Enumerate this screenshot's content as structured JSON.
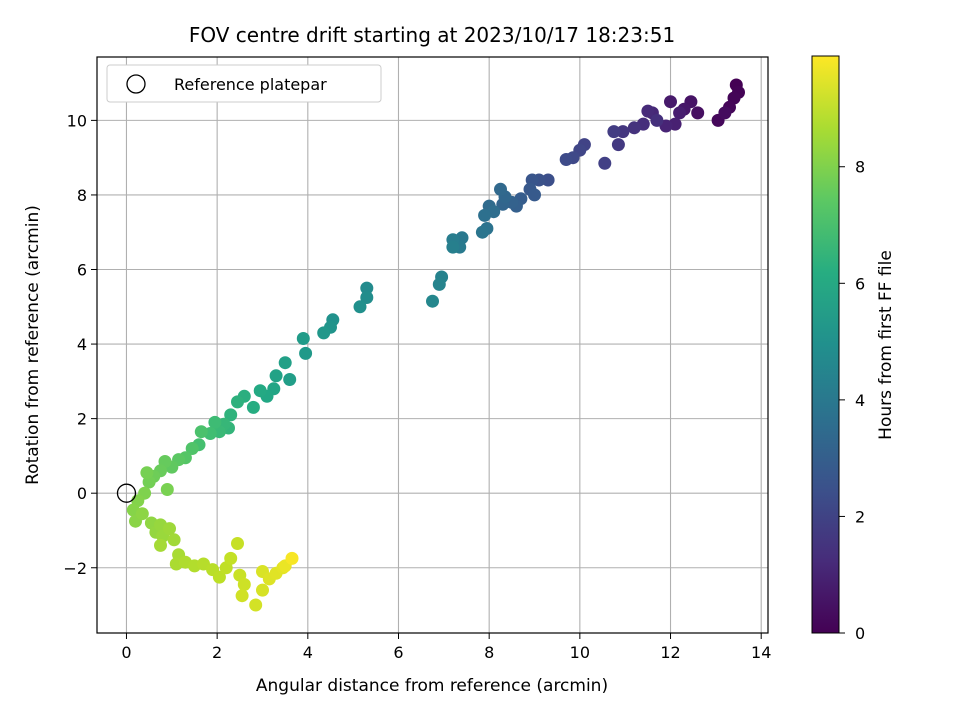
{
  "chart_data": {
    "type": "scatter",
    "title": "FOV centre drift starting at 2023/10/17 18:23:51",
    "xlabel": "Angular distance from reference (arcmin)",
    "ylabel": "Rotation from reference (arcmin)",
    "xlim": [
      -0.65,
      14.15
    ],
    "ylim": [
      -3.75,
      11.7
    ],
    "xticks": [
      0,
      2,
      4,
      6,
      8,
      10,
      12,
      14
    ],
    "yticks": [
      -2,
      0,
      2,
      4,
      6,
      8,
      10
    ],
    "xtick_labels": [
      "0",
      "2",
      "4",
      "6",
      "8",
      "10",
      "12",
      "14"
    ],
    "ytick_labels": [
      "−2",
      "0",
      "2",
      "4",
      "6",
      "8",
      "10"
    ],
    "grid": true,
    "legend": {
      "placement": "top-left",
      "label": "Reference platepar",
      "marker": "open circle"
    },
    "reference_point": {
      "x": 0,
      "y": 0
    },
    "colorbar": {
      "label": "Hours from first FF file",
      "colormap": "viridis",
      "range": [
        0,
        9.9
      ],
      "ticks": [
        0,
        2,
        4,
        6,
        8
      ],
      "tick_labels": [
        "0",
        "2",
        "4",
        "6",
        "8"
      ]
    },
    "series": [
      {
        "points": [
          [
            13.45,
            10.95,
            0.0
          ],
          [
            13.5,
            10.75,
            0.05
          ],
          [
            13.4,
            10.6,
            0.1
          ],
          [
            13.3,
            10.35,
            0.15
          ],
          [
            13.05,
            10.0,
            0.2
          ],
          [
            13.2,
            10.2,
            0.3
          ],
          [
            12.6,
            10.2,
            0.4
          ],
          [
            12.45,
            10.5,
            0.5
          ],
          [
            12.3,
            10.3,
            0.6
          ],
          [
            12.0,
            10.5,
            0.7
          ],
          [
            12.2,
            10.2,
            0.8
          ],
          [
            12.1,
            9.9,
            0.9
          ],
          [
            11.9,
            9.85,
            1.0
          ],
          [
            11.6,
            10.2,
            1.1
          ],
          [
            11.5,
            10.25,
            1.2
          ],
          [
            11.4,
            9.9,
            1.3
          ],
          [
            11.7,
            10.0,
            1.35
          ],
          [
            11.2,
            9.8,
            1.45
          ],
          [
            10.95,
            9.7,
            1.55
          ],
          [
            10.85,
            9.35,
            1.65
          ],
          [
            10.75,
            9.7,
            1.75
          ],
          [
            10.55,
            8.85,
            1.85
          ],
          [
            10.1,
            9.35,
            1.95
          ],
          [
            10.0,
            9.2,
            2.05
          ],
          [
            9.85,
            9.0,
            2.15
          ],
          [
            9.7,
            8.95,
            2.25
          ],
          [
            9.3,
            8.4,
            2.4
          ],
          [
            9.1,
            8.4,
            2.5
          ],
          [
            8.95,
            8.4,
            2.6
          ],
          [
            8.9,
            8.15,
            2.7
          ],
          [
            9.0,
            8.0,
            2.8
          ],
          [
            8.7,
            7.9,
            2.9
          ],
          [
            8.6,
            7.7,
            3.0
          ],
          [
            8.5,
            7.8,
            3.1
          ],
          [
            8.3,
            7.75,
            3.2
          ],
          [
            8.35,
            7.95,
            3.3
          ],
          [
            8.25,
            8.15,
            3.35
          ],
          [
            8.0,
            7.7,
            3.45
          ],
          [
            8.1,
            7.55,
            3.55
          ],
          [
            7.9,
            7.45,
            3.65
          ],
          [
            7.95,
            7.1,
            3.75
          ],
          [
            7.85,
            7.0,
            3.85
          ],
          [
            7.4,
            6.85,
            3.95
          ],
          [
            7.35,
            6.6,
            4.05
          ],
          [
            7.2,
            6.8,
            4.15
          ],
          [
            7.2,
            6.6,
            4.25
          ],
          [
            6.95,
            5.8,
            4.35
          ],
          [
            6.9,
            5.6,
            4.45
          ],
          [
            6.75,
            5.15,
            4.55
          ],
          [
            5.3,
            5.5,
            4.7
          ],
          [
            5.3,
            5.25,
            4.8
          ],
          [
            5.15,
            5.0,
            4.9
          ],
          [
            4.55,
            4.65,
            5.0
          ],
          [
            4.5,
            4.45,
            5.1
          ],
          [
            4.35,
            4.3,
            5.2
          ],
          [
            3.95,
            3.75,
            5.3
          ],
          [
            3.9,
            4.15,
            5.4
          ],
          [
            3.6,
            3.05,
            5.5
          ],
          [
            3.5,
            3.5,
            5.6
          ],
          [
            3.3,
            3.15,
            5.7
          ],
          [
            3.25,
            2.8,
            5.8
          ],
          [
            3.1,
            2.6,
            5.9
          ],
          [
            2.95,
            2.75,
            6.0
          ],
          [
            2.8,
            2.3,
            6.1
          ],
          [
            2.6,
            2.6,
            6.2
          ],
          [
            2.45,
            2.45,
            6.3
          ],
          [
            2.3,
            2.1,
            6.35
          ],
          [
            2.25,
            1.75,
            6.45
          ],
          [
            2.15,
            1.85,
            6.55
          ],
          [
            2.05,
            1.65,
            6.65
          ],
          [
            1.95,
            1.9,
            6.75
          ],
          [
            1.85,
            1.6,
            6.85
          ],
          [
            1.6,
            1.3,
            6.95
          ],
          [
            1.65,
            1.65,
            7.05
          ],
          [
            1.45,
            1.2,
            7.15
          ],
          [
            1.3,
            0.95,
            7.25
          ],
          [
            1.15,
            0.9,
            7.35
          ],
          [
            1.0,
            0.7,
            7.45
          ],
          [
            0.85,
            0.85,
            7.55
          ],
          [
            0.75,
            0.6,
            7.6
          ],
          [
            0.6,
            0.45,
            7.7
          ],
          [
            0.5,
            0.3,
            7.8
          ],
          [
            0.45,
            0.55,
            7.85
          ],
          [
            0.9,
            0.1,
            7.9
          ],
          [
            0.4,
            0.0,
            8.0
          ],
          [
            0.25,
            -0.2,
            8.05
          ],
          [
            0.15,
            -0.45,
            8.1
          ],
          [
            0.2,
            -0.75,
            8.15
          ],
          [
            0.35,
            -0.55,
            8.2
          ],
          [
            0.55,
            -0.8,
            8.25
          ],
          [
            0.65,
            -1.05,
            8.3
          ],
          [
            0.75,
            -0.85,
            8.35
          ],
          [
            0.8,
            -1.15,
            8.4
          ],
          [
            0.95,
            -0.95,
            8.45
          ],
          [
            1.05,
            -1.25,
            8.5
          ],
          [
            0.75,
            -1.4,
            8.55
          ],
          [
            1.15,
            -1.65,
            8.6
          ],
          [
            1.1,
            -1.9,
            8.65
          ],
          [
            1.3,
            -1.85,
            8.7
          ],
          [
            1.5,
            -1.95,
            8.75
          ],
          [
            1.7,
            -1.9,
            8.8
          ],
          [
            1.9,
            -2.05,
            8.85
          ],
          [
            2.05,
            -2.25,
            8.9
          ],
          [
            2.2,
            -2.0,
            8.95
          ],
          [
            2.3,
            -1.75,
            9.0
          ],
          [
            2.45,
            -1.35,
            9.05
          ],
          [
            2.5,
            -2.2,
            9.1
          ],
          [
            2.6,
            -2.45,
            9.15
          ],
          [
            2.55,
            -2.75,
            9.2
          ],
          [
            2.85,
            -3.0,
            9.25
          ],
          [
            3.0,
            -2.6,
            9.3
          ],
          [
            3.0,
            -2.1,
            9.35
          ],
          [
            3.15,
            -2.3,
            9.4
          ],
          [
            3.3,
            -2.15,
            9.45
          ],
          [
            3.45,
            -2.0,
            9.5
          ],
          [
            3.5,
            -1.95,
            9.6
          ],
          [
            3.65,
            -1.75,
            9.8
          ]
        ]
      }
    ]
  }
}
